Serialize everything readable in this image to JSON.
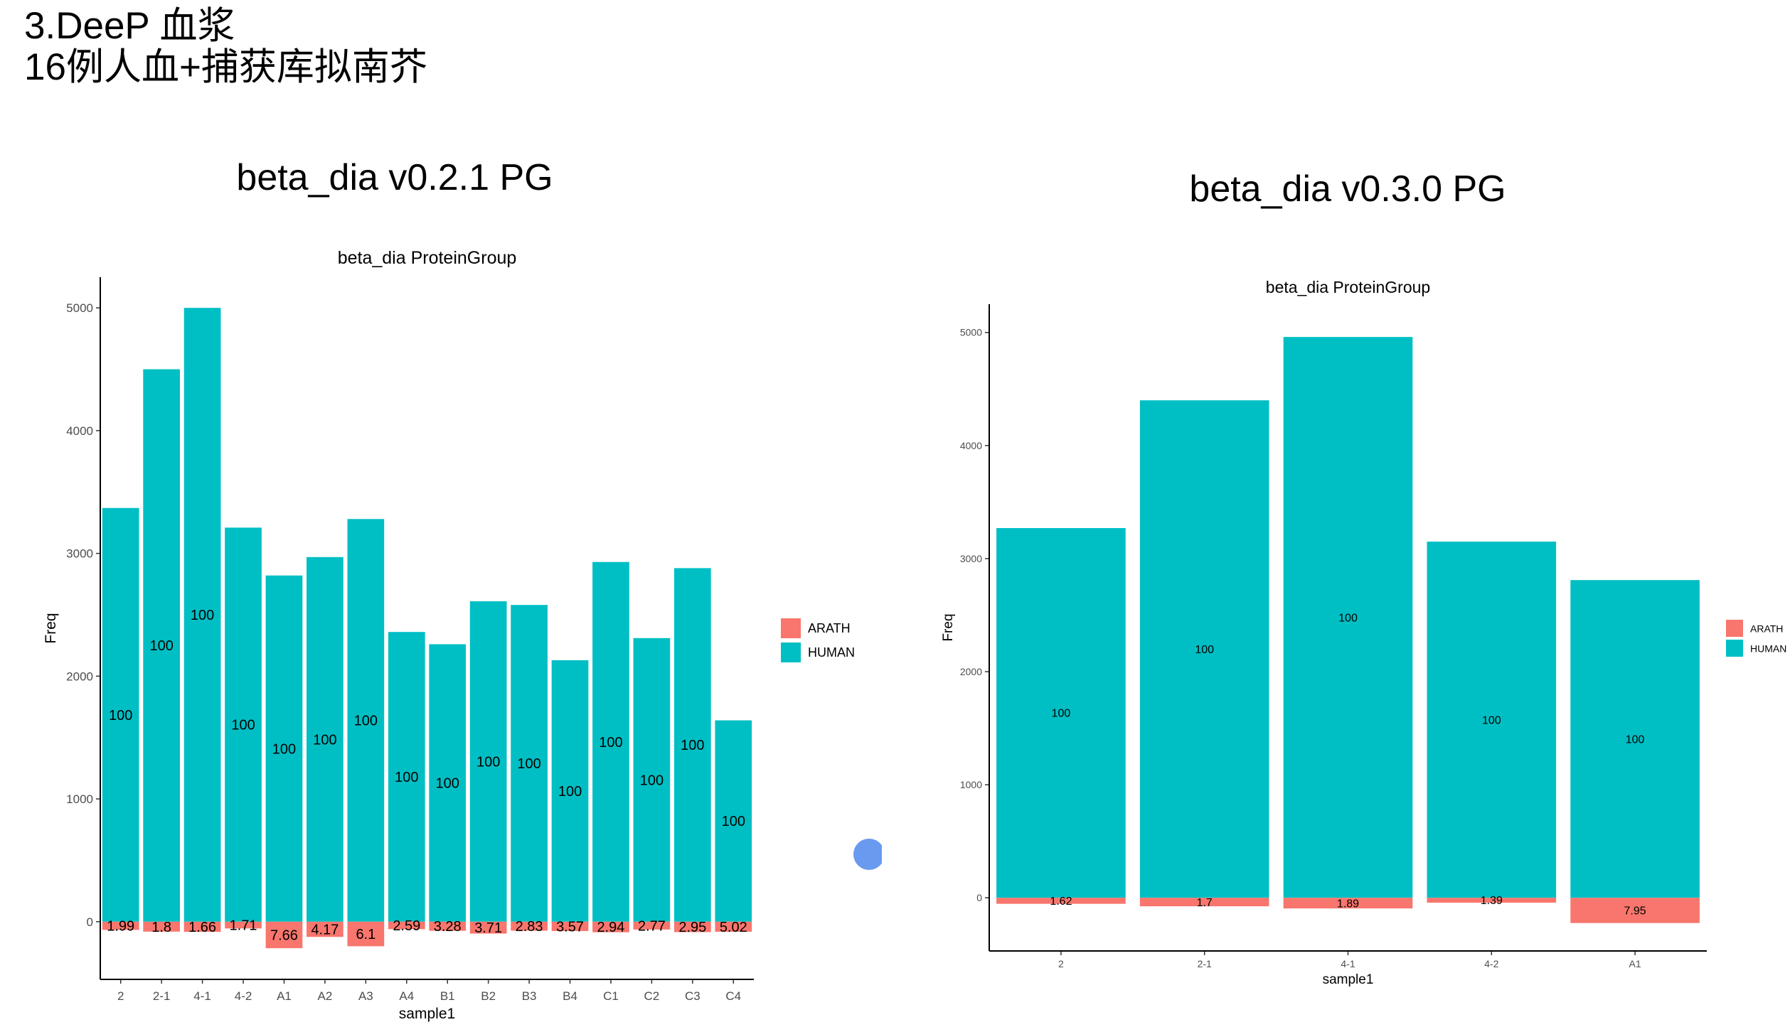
{
  "slide": {
    "title_line1": "3.DeeP 血浆",
    "title_line2": "16例人血+捕获库拟南芥"
  },
  "colors": {
    "human": "#00BFC4",
    "arath": "#F8766D"
  },
  "chart_data": [
    {
      "type": "bar",
      "heading": "beta_dia v0.2.1 PG",
      "title": "beta_dia ProteinGroup",
      "xlabel": "sample1",
      "ylabel": "Freq",
      "ylim": [
        -470,
        5250
      ],
      "yticks": [
        0,
        1000,
        2000,
        3000,
        4000,
        5000
      ],
      "ytick_labels": [
        "0",
        "1000",
        "2000",
        "3000",
        "4000",
        "5000"
      ],
      "legend": [
        "ARATH",
        "HUMAN"
      ],
      "legend_position": "right",
      "categories": [
        "2",
        "2-1",
        "4-1",
        "4-2",
        "A1",
        "A2",
        "A3",
        "A4",
        "B1",
        "B2",
        "B3",
        "B4",
        "C1",
        "C2",
        "C3",
        "C4"
      ],
      "series": [
        {
          "name": "HUMAN",
          "values": [
            3370,
            4500,
            5000,
            3210,
            2820,
            2970,
            3280,
            2360,
            2260,
            2610,
            2580,
            2130,
            2930,
            2310,
            2880,
            1640
          ],
          "labels": [
            "100",
            "100",
            "100",
            "100",
            "100",
            "100",
            "100",
            "100",
            "100",
            "100",
            "100",
            "100",
            "100",
            "100",
            "100",
            "100"
          ]
        },
        {
          "name": "ARATH",
          "values": [
            -67,
            -81,
            -83,
            -55,
            -216,
            -124,
            -200,
            -61,
            -74,
            -97,
            -73,
            -76,
            -86,
            -64,
            -85,
            -82
          ],
          "labels": [
            "1.99",
            "1.8",
            "1.66",
            "1.71",
            "7.66",
            "4.17",
            "6.1",
            "2.59",
            "3.28",
            "3.71",
            "2.83",
            "3.57",
            "2.94",
            "2.77",
            "2.95",
            "5.02"
          ]
        }
      ]
    },
    {
      "type": "bar",
      "heading": "beta_dia v0.3.0 PG",
      "title": "beta_dia ProteinGroup",
      "xlabel": "sample1",
      "ylabel": "Freq",
      "ylim": [
        -470,
        5250
      ],
      "yticks": [
        0,
        1000,
        2000,
        3000,
        4000,
        5000
      ],
      "ytick_labels": [
        "0",
        "1000",
        "2000",
        "3000",
        "4000",
        "5000"
      ],
      "legend": [
        "ARATH",
        "HUMAN"
      ],
      "legend_position": "right",
      "categories": [
        "2",
        "2-1",
        "4-1",
        "4-2",
        "A1"
      ],
      "series": [
        {
          "name": "HUMAN",
          "values": [
            3270,
            4400,
            4960,
            3150,
            2810
          ],
          "labels": [
            "100",
            "100",
            "100",
            "100",
            "100"
          ]
        },
        {
          "name": "ARATH",
          "values": [
            -53,
            -75,
            -94,
            -43,
            -223
          ],
          "labels": [
            "1.62",
            "1.7",
            "1.89",
            "1.39",
            "7.95"
          ]
        }
      ]
    }
  ]
}
